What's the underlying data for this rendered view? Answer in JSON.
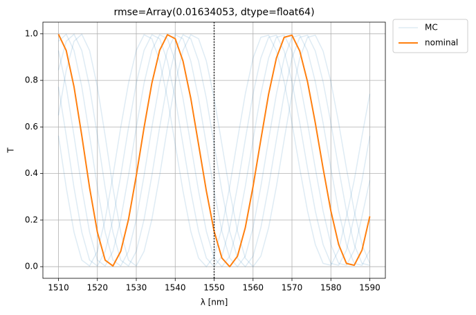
{
  "chart_data": {
    "type": "line",
    "title": "rmse=Array(0.01634053, dtype=float64)",
    "xlabel": "λ [nm]",
    "ylabel": "T",
    "x": [
      1510,
      1512,
      1514,
      1516,
      1518,
      1520,
      1522,
      1524,
      1526,
      1528,
      1530,
      1532,
      1534,
      1536,
      1538,
      1540,
      1542,
      1544,
      1546,
      1548,
      1550,
      1552,
      1554,
      1556,
      1558,
      1560,
      1562,
      1564,
      1566,
      1568,
      1570,
      1572,
      1574,
      1576,
      1578,
      1580,
      1582,
      1584,
      1586,
      1588,
      1590
    ],
    "series": [
      {
        "name": "MC",
        "color": "#1f77b4",
        "opacity": 0.15,
        "values": [
          [
            0.65,
            0.844,
            0.968,
            0.998,
            0.928,
            0.772,
            0.562,
            0.339,
            0.148,
            0.028,
            0.003,
            0.066,
            0.203,
            0.391,
            0.598,
            0.788,
            0.929,
            0.996,
            0.979,
            0.883,
            0.723,
            0.525,
            0.325,
            0.152,
            0.037,
            0.0,
            0.045,
            0.167,
            0.344,
            0.545,
            0.741,
            0.896,
            0.985,
            0.994,
            0.926,
            0.794,
            0.617,
            0.422,
            0.239,
            0.095,
            0.014
          ],
          [
            0.844,
            0.968,
            0.998,
            0.928,
            0.772,
            0.562,
            0.339,
            0.148,
            0.028,
            0.003,
            0.066,
            0.203,
            0.391,
            0.598,
            0.788,
            0.929,
            0.996,
            0.979,
            0.883,
            0.723,
            0.525,
            0.325,
            0.152,
            0.037,
            0.0,
            0.045,
            0.167,
            0.344,
            0.545,
            0.741,
            0.896,
            0.985,
            0.994,
            0.926,
            0.794,
            0.617,
            0.422,
            0.239,
            0.095,
            0.014,
            0.006
          ],
          [
            0.968,
            0.998,
            0.928,
            0.772,
            0.562,
            0.339,
            0.148,
            0.028,
            0.003,
            0.066,
            0.203,
            0.391,
            0.598,
            0.788,
            0.929,
            0.996,
            0.979,
            0.883,
            0.723,
            0.525,
            0.325,
            0.152,
            0.037,
            0.0,
            0.045,
            0.167,
            0.344,
            0.545,
            0.741,
            0.896,
            0.985,
            0.994,
            0.926,
            0.794,
            0.617,
            0.422,
            0.239,
            0.095,
            0.014,
            0.006,
            0.071
          ],
          [
            0.928,
            0.772,
            0.562,
            0.339,
            0.148,
            0.028,
            0.003,
            0.066,
            0.203,
            0.391,
            0.598,
            0.788,
            0.929,
            0.996,
            0.979,
            0.883,
            0.723,
            0.525,
            0.325,
            0.152,
            0.037,
            0.0,
            0.045,
            0.167,
            0.344,
            0.545,
            0.741,
            0.896,
            0.985,
            0.994,
            0.926,
            0.794,
            0.617,
            0.422,
            0.239,
            0.095,
            0.014,
            0.006,
            0.071,
            0.216,
            0.371
          ],
          [
            0.772,
            0.562,
            0.339,
            0.148,
            0.028,
            0.003,
            0.066,
            0.203,
            0.391,
            0.598,
            0.788,
            0.929,
            0.996,
            0.979,
            0.883,
            0.723,
            0.525,
            0.325,
            0.152,
            0.037,
            0.0,
            0.045,
            0.167,
            0.344,
            0.545,
            0.741,
            0.896,
            0.985,
            0.994,
            0.926,
            0.794,
            0.617,
            0.422,
            0.239,
            0.095,
            0.014,
            0.006,
            0.071,
            0.216,
            0.371,
            0.561
          ],
          [
            0.562,
            0.339,
            0.148,
            0.028,
            0.003,
            0.066,
            0.203,
            0.391,
            0.598,
            0.788,
            0.929,
            0.996,
            0.979,
            0.883,
            0.723,
            0.525,
            0.325,
            0.152,
            0.037,
            0.0,
            0.045,
            0.167,
            0.344,
            0.545,
            0.741,
            0.896,
            0.985,
            0.994,
            0.926,
            0.794,
            0.617,
            0.422,
            0.239,
            0.095,
            0.014,
            0.006,
            0.071,
            0.216,
            0.371,
            0.561,
            0.742
          ]
        ]
      },
      {
        "name": "nominal",
        "color": "#ff7f0e",
        "values": [
          0.998,
          0.928,
          0.772,
          0.562,
          0.339,
          0.148,
          0.028,
          0.003,
          0.066,
          0.203,
          0.391,
          0.598,
          0.788,
          0.929,
          0.996,
          0.979,
          0.883,
          0.723,
          0.525,
          0.325,
          0.152,
          0.037,
          0.0,
          0.045,
          0.167,
          0.344,
          0.545,
          0.741,
          0.896,
          0.985,
          0.994,
          0.926,
          0.794,
          0.617,
          0.422,
          0.239,
          0.095,
          0.014,
          0.006,
          0.071,
          0.216
        ]
      }
    ],
    "vline": 1550,
    "xlim": [
      1506,
      1594
    ],
    "xticks": [
      1510,
      1520,
      1530,
      1540,
      1550,
      1560,
      1570,
      1580,
      1590
    ],
    "ylim": [
      -0.05,
      1.05
    ],
    "yticks": [
      {
        "value": 0,
        "label": "0.0"
      },
      {
        "value": 0.2,
        "label": "0.2"
      },
      {
        "value": 0.4,
        "label": "0.4"
      },
      {
        "value": 0.6,
        "label": "0.6"
      },
      {
        "value": 0.8,
        "label": "0.8"
      },
      {
        "value": 1,
        "label": "1.0"
      }
    ],
    "grid": true,
    "legend": "outside upper right"
  }
}
